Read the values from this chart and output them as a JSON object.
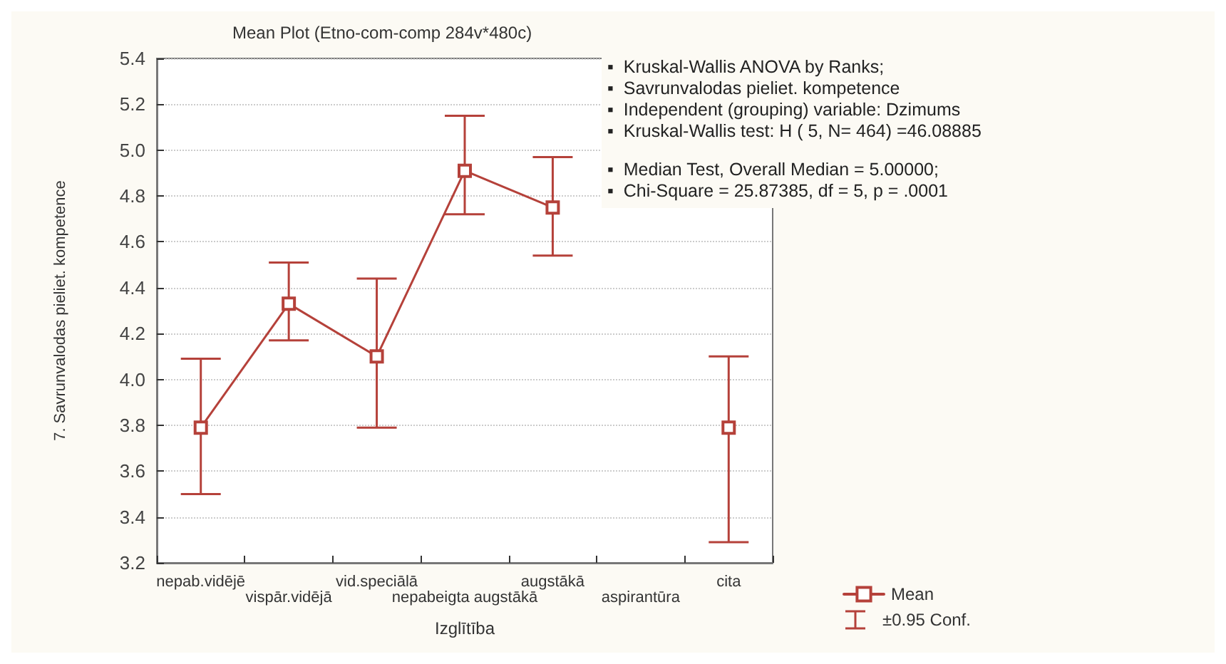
{
  "chart_data": {
    "type": "line",
    "title": "Mean Plot (Etno-com-comp 284v*480c)",
    "xlabel": "Izglītība",
    "ylabel": "7. Savrunvalodas pieliet. kompetence",
    "categories": [
      "nepab.vidējē",
      "vispār.vidējā",
      "vid.speciālā",
      "nepabeigta augstākā",
      "augstākā",
      "aspirantūra",
      "cita"
    ],
    "series": [
      {
        "name": "Mean",
        "color": "#b5413a",
        "values": [
          3.79,
          4.33,
          4.1,
          4.91,
          4.75,
          null,
          3.79
        ],
        "errors": [
          [
            3.5,
            4.09
          ],
          [
            4.17,
            4.51
          ],
          [
            3.79,
            4.44
          ],
          [
            4.72,
            5.15
          ],
          [
            4.54,
            4.97
          ],
          null,
          [
            3.29,
            4.1
          ]
        ]
      }
    ],
    "ylim": [
      3.2,
      5.4
    ],
    "yticks": [
      3.2,
      3.4,
      3.6,
      3.8,
      {
        "value": 4,
        "label": "4.0"
      },
      4.2,
      4.4,
      4.6,
      4.8,
      {
        "value": 5,
        "label": "5.0"
      },
      5.2,
      5.4
    ],
    "grid": "y",
    "legend": "bottom right",
    "marker": "square",
    "line_style": "solid",
    "annotations": [
      "▪  Kruskal-Wallis ANOVA by Ranks;",
      "▪  Savrunvalodas pieliet. kompetence",
      "▪  Independent (grouping) variable: Dzimums",
      "▪  Kruskal-Wallis test: H ( 5, N= 464) =46.08885",
      "▪  Median Test, Overall Median = 5.00000;",
      "▪  Chi-Square = 25.87385, df = 5, p = .0001",
      "±0.95 Conf."
    ]
  }
}
